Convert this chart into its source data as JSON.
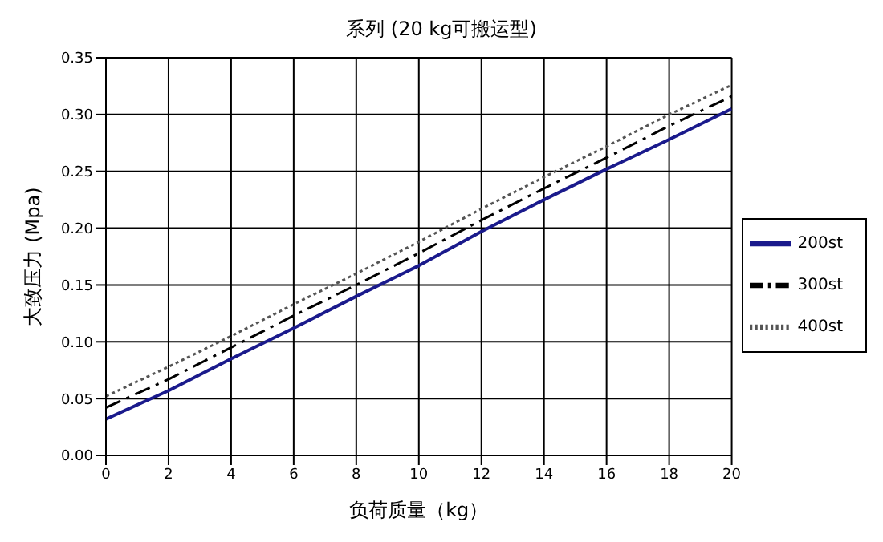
{
  "chart_data": {
    "type": "line",
    "title": "系列 (20 kg可搬运型)",
    "xlabel": "负荷质量（kg）",
    "ylabel": "大致压力 (Mpa)",
    "x": [
      0,
      2,
      4,
      6,
      8,
      10,
      12,
      14,
      16,
      18,
      20
    ],
    "series": [
      {
        "name": "200st",
        "color": "#1a1a8c",
        "line_style": "solid",
        "values": [
          0.032,
          0.057,
          0.085,
          0.112,
          0.14,
          0.167,
          0.197,
          0.225,
          0.252,
          0.278,
          0.305
        ]
      },
      {
        "name": "300st",
        "color": "#000000",
        "line_style": "dashed",
        "values": [
          0.042,
          0.067,
          0.095,
          0.123,
          0.15,
          0.178,
          0.207,
          0.235,
          0.262,
          0.29,
          0.316
        ]
      },
      {
        "name": "400st",
        "color": "#555555",
        "line_style": "dotted",
        "values": [
          0.052,
          0.078,
          0.105,
          0.133,
          0.16,
          0.188,
          0.217,
          0.245,
          0.272,
          0.3,
          0.326
        ]
      }
    ],
    "xlim": [
      0,
      20
    ],
    "xticks": [
      0,
      2,
      4,
      6,
      8,
      10,
      12,
      14,
      16,
      18,
      20
    ],
    "ylim": [
      0,
      0.35
    ],
    "yticks": [
      {
        "value": 0,
        "label": "0.00"
      },
      {
        "value": 0.05,
        "label": "0.05"
      },
      {
        "value": 0.1,
        "label": "0.10"
      },
      {
        "value": 0.15,
        "label": "0.15"
      },
      {
        "value": 0.2,
        "label": "0.20"
      },
      {
        "value": 0.25,
        "label": "0.25"
      },
      {
        "value": 0.3,
        "label": "0.30"
      },
      {
        "value": 0.35,
        "label": "0.35"
      }
    ],
    "grid": true,
    "legend": "right",
    "marker": "none"
  }
}
